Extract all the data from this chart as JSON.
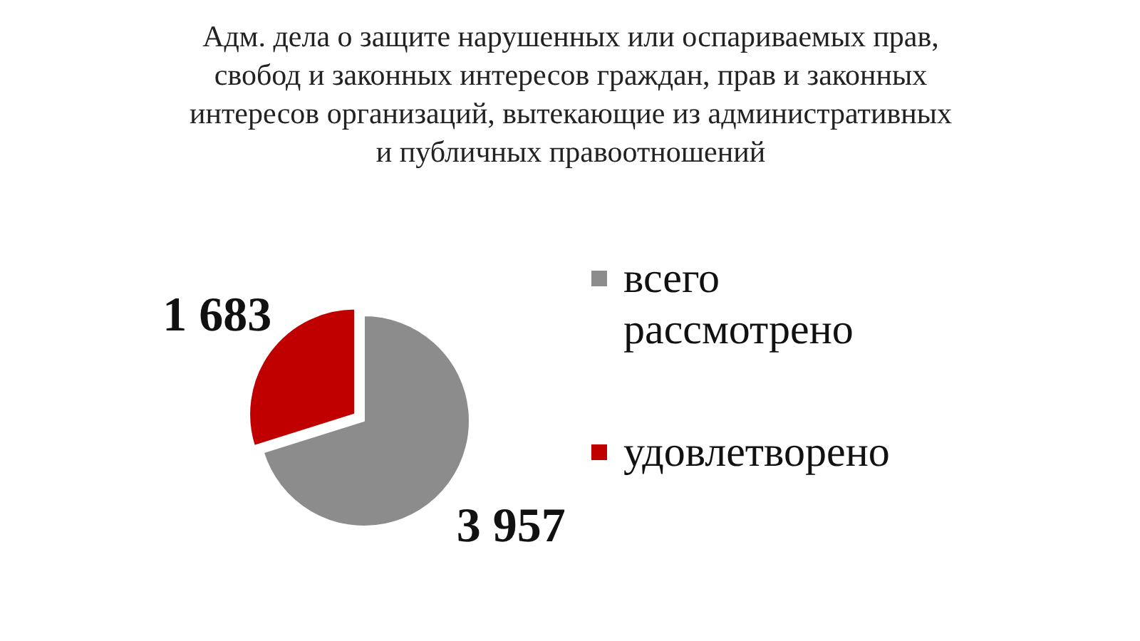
{
  "chart_data": {
    "type": "pie",
    "title": "Адм. дела о защите нарушенных или оспариваемых прав, свобод и законных интересов граждан, прав и законных интересов организаций, вытекающие из административных и публичных правоотношений",
    "categories": [
      "всего рассмотрено",
      "удовлетворено"
    ],
    "values": [
      3957,
      1683
    ],
    "colors": [
      "#8c8c8c",
      "#c00000"
    ],
    "value_labels": [
      "3 957",
      "1 683"
    ],
    "legend": "right"
  }
}
